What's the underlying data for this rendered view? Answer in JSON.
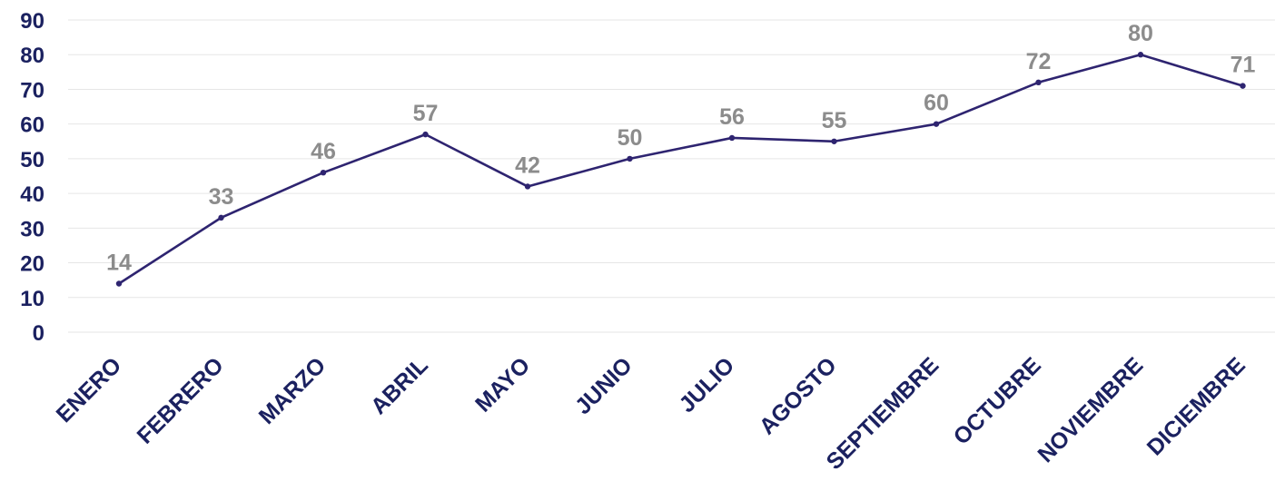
{
  "chart_data": {
    "type": "line",
    "categories": [
      "ENERO",
      "FEBRERO",
      "MARZO",
      "ABRIL",
      "MAYO",
      "JUNIO",
      "JULIO",
      "AGOSTO",
      "SEPTIEMBRE",
      "OCTUBRE",
      "NOVIEMBRE",
      "DICIEMBRE"
    ],
    "series": [
      {
        "values": [
          14,
          33,
          46,
          57,
          42,
          50,
          56,
          55,
          60,
          72,
          80,
          71
        ]
      }
    ],
    "ylim": [
      0,
      90
    ],
    "yticks": [
      0,
      10,
      20,
      30,
      40,
      50,
      60,
      70,
      80,
      90
    ],
    "grid": true,
    "data_labels": true,
    "title": "",
    "xlabel": "",
    "ylabel": "",
    "colors": {
      "line": "#2e2470",
      "axis_text": "#1b2160",
      "data_label": "#8c8c8c",
      "grid": "#e6e6e6"
    }
  }
}
